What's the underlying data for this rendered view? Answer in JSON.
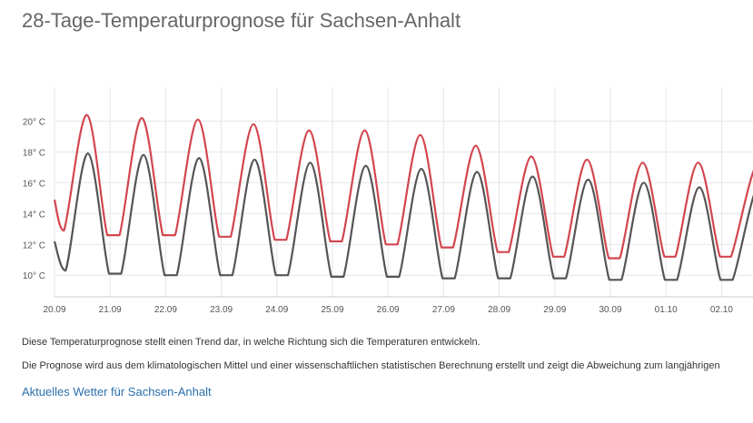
{
  "page": {
    "title": "28-Tage-Temperaturprognose für Sachsen-Anhalt",
    "description_1": "Diese Temperaturprognose stellt einen Trend dar, in welche Richtung sich die Temperaturen entwickeln.",
    "description_2": "Die Prognose wird aus dem klimatologischen Mittel und einer wissenschaftlichen statistischen Berechnung erstellt und zeigt die Abweichung zum langjährigen",
    "link_text": "Aktuelles Wetter für Sachsen-Anhalt"
  },
  "colors": {
    "max_series": "#d2464f",
    "min_series": "#555555",
    "grid": "#e6e6e6",
    "link": "#2a6fad"
  },
  "chart_data": {
    "type": "line",
    "title": "",
    "xlabel": "",
    "ylabel": "",
    "x_tick_labels": [
      "20.09",
      "21.09",
      "22.09",
      "23.09",
      "24.09",
      "25.09",
      "26.09",
      "27.09",
      "28.09",
      "29.09",
      "30.09",
      "01.10",
      "02.10"
    ],
    "y_tick_labels": [
      "10° C",
      "12° C",
      "14° C",
      "16° C",
      "18° C",
      "20° C"
    ],
    "y_ticks": [
      10,
      12,
      14,
      16,
      18,
      20
    ],
    "ylim": [
      8.6,
      22.2
    ],
    "x_range_days": [
      0,
      12.85
    ],
    "grid": true,
    "legend": "none",
    "series": [
      {
        "key": "max",
        "days": [
          0.0,
          0.17,
          0.58,
          0.95,
          1.17,
          1.57,
          1.95,
          2.17,
          2.58,
          2.96,
          3.17,
          3.58,
          3.96,
          4.17,
          4.58,
          4.96,
          5.17,
          5.58,
          5.96,
          6.17,
          6.58,
          6.96,
          7.17,
          7.58,
          7.97,
          8.17,
          8.58,
          8.97,
          9.17,
          9.58,
          9.97,
          10.17,
          10.58,
          10.97,
          11.17,
          11.58,
          11.97,
          12.17,
          12.58,
          12.85
        ],
        "values": [
          14.9,
          12.9,
          20.4,
          12.6,
          12.6,
          20.2,
          12.6,
          12.6,
          20.1,
          12.5,
          12.5,
          19.8,
          12.3,
          12.3,
          19.4,
          12.2,
          12.2,
          19.4,
          12.0,
          12.0,
          19.1,
          11.8,
          11.8,
          18.4,
          11.5,
          11.5,
          17.7,
          11.2,
          11.2,
          17.5,
          11.1,
          11.1,
          17.3,
          11.2,
          11.2,
          17.3,
          11.2,
          11.2,
          16.8,
          16.8
        ]
      },
      {
        "key": "min",
        "days": [
          0.0,
          0.2,
          0.6,
          0.98,
          1.2,
          1.6,
          1.98,
          2.2,
          2.6,
          2.98,
          3.2,
          3.6,
          3.98,
          4.2,
          4.6,
          4.98,
          5.2,
          5.6,
          5.98,
          6.2,
          6.6,
          6.98,
          7.2,
          7.6,
          7.98,
          8.2,
          8.6,
          8.98,
          9.2,
          9.6,
          9.98,
          10.2,
          10.6,
          10.98,
          11.2,
          11.6,
          11.98,
          12.2,
          12.6,
          12.85
        ],
        "values": [
          12.2,
          10.3,
          17.9,
          10.1,
          10.1,
          17.8,
          10.0,
          10.0,
          17.6,
          10.0,
          10.0,
          17.5,
          10.0,
          10.0,
          17.3,
          9.9,
          9.9,
          17.1,
          9.9,
          9.9,
          16.9,
          9.8,
          9.8,
          16.7,
          9.8,
          9.8,
          16.4,
          9.8,
          9.8,
          16.2,
          9.7,
          9.7,
          16.0,
          9.7,
          9.7,
          15.7,
          9.7,
          9.7,
          15.4,
          15.4
        ]
      }
    ]
  }
}
